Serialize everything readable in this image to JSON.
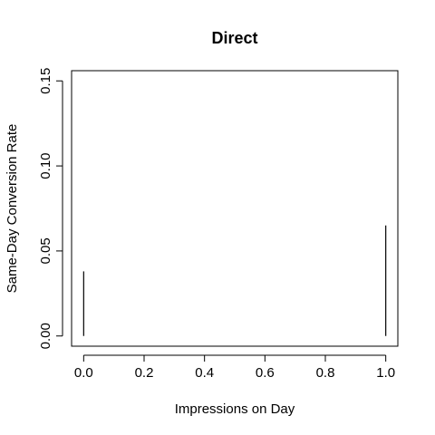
{
  "chart_data": {
    "type": "bar",
    "title": "Direct",
    "xlabel": "Impressions on Day",
    "ylabel": "Same-Day Conversion Rate",
    "x": [
      0,
      1
    ],
    "values": [
      0.038,
      0.065
    ],
    "xlim": [
      -0.04,
      1.04
    ],
    "ylim": [
      -0.006,
      0.156
    ],
    "xticks": [
      0,
      0.2,
      0.4,
      0.6,
      0.8,
      1
    ],
    "xtick_labels": [
      "0.0",
      "0.2",
      "0.4",
      "0.6",
      "0.8",
      "1.0"
    ],
    "yticks": [
      0,
      0.05,
      0.1,
      0.15
    ],
    "ytick_labels": [
      "0.00",
      "0.05",
      "0.10",
      "0.15"
    ],
    "grid": false,
    "legend": "none",
    "bar_style": "vertical lines (R type='h')",
    "colors": {
      "line": "#000000",
      "background": "#ffffff"
    }
  }
}
